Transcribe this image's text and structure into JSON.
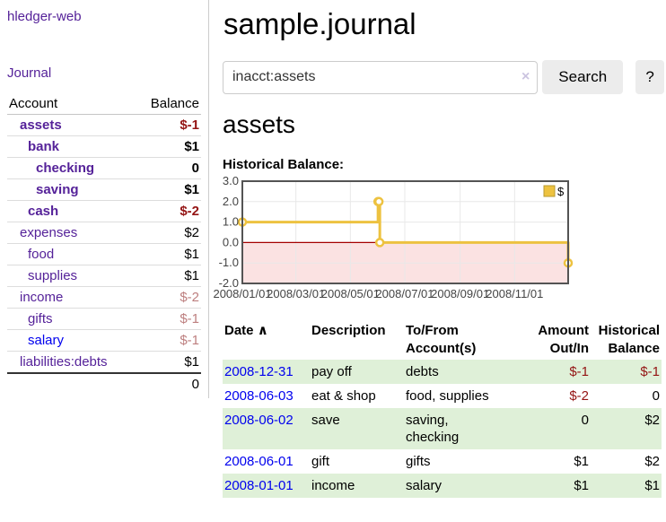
{
  "app": {
    "title": "hledger-web"
  },
  "sidebar": {
    "journal_link": "Journal",
    "accounts_header": {
      "account": "Account",
      "balance": "Balance"
    },
    "accounts": [
      {
        "name": "assets",
        "depth": 1,
        "balance": "$-1",
        "bold": true,
        "negative": true
      },
      {
        "name": "bank",
        "depth": 2,
        "balance": "$1",
        "bold": true,
        "negative": false
      },
      {
        "name": "checking",
        "depth": 3,
        "balance": "0",
        "bold": true,
        "negative": false
      },
      {
        "name": "saving",
        "depth": 3,
        "balance": "$1",
        "bold": true,
        "negative": false
      },
      {
        "name": "cash",
        "depth": 2,
        "balance": "$-2",
        "bold": true,
        "negative": true
      },
      {
        "name": "expenses",
        "depth": 1,
        "balance": "$2",
        "bold": false,
        "negative": false
      },
      {
        "name": "food",
        "depth": 2,
        "balance": "$1",
        "bold": false,
        "negative": false
      },
      {
        "name": "supplies",
        "depth": 2,
        "balance": "$1",
        "bold": false,
        "negative": false
      },
      {
        "name": "income",
        "depth": 1,
        "balance": "$-2",
        "bold": false,
        "negative": true
      },
      {
        "name": "gifts",
        "depth": 2,
        "balance": "$-1",
        "bold": false,
        "negative": true
      },
      {
        "name": "salary",
        "depth": 2,
        "balance": "$-1",
        "bold": false,
        "negative": true,
        "link_style": "unvisited"
      },
      {
        "name": "liabilities:debts",
        "depth": 1,
        "balance": "$1",
        "bold": false,
        "negative": false
      }
    ],
    "total": "0"
  },
  "main": {
    "title": "sample.journal",
    "search": {
      "value": "inacct:assets",
      "clear_icon": "×",
      "button": "Search",
      "help_button": "?"
    },
    "account_heading": "assets",
    "chart_heading": "Historical Balance:"
  },
  "register": {
    "headers": {
      "date": "Date",
      "sort_arrow": "∧",
      "description": "Description",
      "accounts_lines": [
        "To/From",
        "Account(s)"
      ],
      "amount_lines": [
        "Amount",
        "Out/In"
      ],
      "balance_lines": [
        "Historical",
        "Balance"
      ]
    },
    "rows": [
      {
        "date": "2008-12-31",
        "description": "pay off",
        "accounts_lines": [
          "debts"
        ],
        "amount": "$-1",
        "amount_negative": true,
        "balance": "$-1",
        "balance_negative": true,
        "shaded": true
      },
      {
        "date": "2008-06-03",
        "description": "eat & shop",
        "accounts_lines": [
          "food, supplies"
        ],
        "amount": "$-2",
        "amount_negative": true,
        "balance": "0",
        "balance_negative": false,
        "shaded": false
      },
      {
        "date": "2008-06-02",
        "description": "save",
        "accounts_lines": [
          "saving,",
          "checking"
        ],
        "amount": "0",
        "amount_negative": false,
        "balance": "$2",
        "balance_negative": false,
        "shaded": true
      },
      {
        "date": "2008-06-01",
        "description": "gift",
        "accounts_lines": [
          "gifts"
        ],
        "amount": "$1",
        "amount_negative": false,
        "balance": "$2",
        "balance_negative": false,
        "shaded": false
      },
      {
        "date": "2008-01-01",
        "description": "income",
        "accounts_lines": [
          "salary"
        ],
        "amount": "$1",
        "amount_negative": false,
        "balance": "$1",
        "balance_negative": false,
        "shaded": true
      }
    ]
  },
  "chart_data": {
    "type": "line",
    "title": "Historical Balance:",
    "step": true,
    "series": [
      {
        "name": "$",
        "color": "#edc240",
        "points": [
          {
            "date": "2008-01-01",
            "day": 1,
            "value": 1
          },
          {
            "date": "2008-06-01",
            "day": 153,
            "value": 2
          },
          {
            "date": "2008-06-02",
            "day": 154,
            "value": 2
          },
          {
            "date": "2008-06-03",
            "day": 155,
            "value": 0
          },
          {
            "date": "2008-12-31",
            "day": 366,
            "value": -1
          }
        ]
      }
    ],
    "xlim_days": [
      1,
      366
    ],
    "ylim": [
      -2,
      3
    ],
    "y_ticks": [
      "3.0",
      "2.0",
      "1.0",
      "0.0",
      "-1.0",
      "-2.0"
    ],
    "x_ticks": [
      {
        "label": "2008/01/01",
        "day": 1
      },
      {
        "label": "2008/03/01",
        "day": 61
      },
      {
        "label": "2008/05/01",
        "day": 122
      },
      {
        "label": "2008/07/01",
        "day": 183
      },
      {
        "label": "2008/09/01",
        "day": 245
      },
      {
        "label": "2008/11/01",
        "day": 306
      }
    ],
    "legend": {
      "label": "$",
      "position": "top-right"
    },
    "colors": {
      "line": "#edc240",
      "negative_region": "#fbe2e2",
      "zero_line": "#a40000",
      "grid": "#e8e8e8",
      "border": "#545454",
      "tick_label": "#444444"
    }
  },
  "colors": {
    "link_visited_purple": "#552299",
    "link_blue": "#0000ee",
    "negative_strong": "#941414",
    "negative_muted": "#bd7f7f",
    "shaded_row_green": "#dff0d8"
  }
}
